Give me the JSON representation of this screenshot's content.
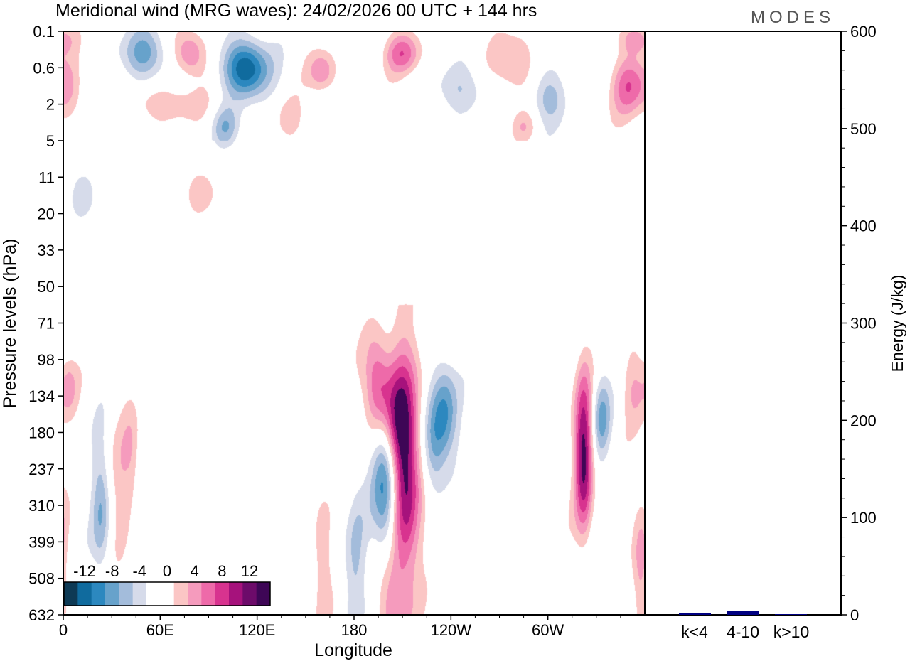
{
  "title": "Meridional wind (MRG waves):  24/02/2026  00 UTC  + 144 hrs",
  "logo": "MODES",
  "chart_data": {
    "type": "heatmap",
    "title": "Meridional wind (MRG waves):  24/02/2026  00 UTC  + 144 hrs",
    "xlabel": "Longitude",
    "ylabel": "Pressure levels (hPa)",
    "x_ticks": [
      "0",
      "60E",
      "120E",
      "180",
      "120W",
      "60W"
    ],
    "x_tick_degrees": [
      0,
      60,
      120,
      180,
      240,
      300
    ],
    "x_range": [
      0,
      360
    ],
    "y_ticks": [
      "0.1",
      "0.6",
      "2",
      "5",
      "11",
      "20",
      "33",
      "50",
      "71",
      "98",
      "134",
      "180",
      "237",
      "310",
      "399",
      "508",
      "632"
    ],
    "colorbar": {
      "labels": [
        "-12",
        "-8",
        "-4",
        "0",
        "4",
        "8",
        "12"
      ],
      "colors": [
        "#0e3a55",
        "#106b9e",
        "#2c88bf",
        "#67a2cb",
        "#a3bcdb",
        "#d6dbea",
        "#ffffff",
        "#ffffff",
        "#fbc6c5",
        "#f59bbd",
        "#ee6aa9",
        "#d8338f",
        "#a6127c",
        "#6d0b6a",
        "#3e0656"
      ]
    },
    "blobs": [
      {
        "lon": 200,
        "lev": 11.8,
        "w": 6,
        "h": 1.8,
        "v": -14
      },
      {
        "lon": 211,
        "lev": 12.0,
        "w": 7,
        "h": 2.2,
        "v": 14
      },
      {
        "lon": 195,
        "lev": 9.8,
        "w": 6,
        "h": 1.0,
        "v": 11
      },
      {
        "lon": 203,
        "lev": 10.6,
        "w": 6,
        "h": 1.2,
        "v": 9
      },
      {
        "lon": 236,
        "lev": 10.5,
        "w": 6,
        "h": 1.0,
        "v": -8
      },
      {
        "lon": 229,
        "lev": 11.6,
        "w": 5,
        "h": 1.0,
        "v": -5
      },
      {
        "lon": 322,
        "lev": 11.6,
        "w": 4,
        "h": 1.5,
        "v": 13
      },
      {
        "lon": 333,
        "lev": 10.6,
        "w": 4,
        "h": 0.8,
        "v": -6
      },
      {
        "lon": 23,
        "lev": 13.1,
        "w": 4,
        "h": 1.3,
        "v": -6
      },
      {
        "lon": 35,
        "lev": 13.0,
        "w": 4,
        "h": 1.4,
        "v": 3
      },
      {
        "lon": 42,
        "lev": 11.8,
        "w": 4,
        "h": 1.2,
        "v": 4
      },
      {
        "lon": 160,
        "lev": 14.6,
        "w": 4,
        "h": 1.4,
        "v": 4
      },
      {
        "lon": 181,
        "lev": 14.7,
        "w": 5,
        "h": 1.5,
        "v": -4
      },
      {
        "lon": 203,
        "lev": 15.6,
        "w": 6,
        "h": 1.0,
        "v": 6
      },
      {
        "lon": 357,
        "lev": 14.6,
        "w": 4,
        "h": 1.5,
        "v": 5
      },
      {
        "lon": 3,
        "lev": 9.7,
        "w": 4,
        "h": 0.6,
        "v": 4
      },
      {
        "lon": 353,
        "lev": 9.8,
        "w": 5,
        "h": 0.7,
        "v": 4
      },
      {
        "lon": 113,
        "lev": 1.0,
        "w": 10,
        "h": 0.55,
        "v": -12
      },
      {
        "lon": 50,
        "lev": 0.6,
        "w": 10,
        "h": 0.5,
        "v": -7
      },
      {
        "lon": 78,
        "lev": 0.6,
        "w": 7,
        "h": 0.45,
        "v": 7
      },
      {
        "lon": 160,
        "lev": 1.1,
        "w": 6,
        "h": 0.4,
        "v": 6
      },
      {
        "lon": 210,
        "lev": 0.6,
        "w": 8,
        "h": 0.4,
        "v": 7
      },
      {
        "lon": 246,
        "lev": 1.6,
        "w": 12,
        "h": 0.5,
        "v": -4
      },
      {
        "lon": 278,
        "lev": 0.9,
        "w": 9,
        "h": 0.6,
        "v": 5
      },
      {
        "lon": 300,
        "lev": 1.8,
        "w": 8,
        "h": 0.55,
        "v": -5
      },
      {
        "lon": 350,
        "lev": 1.5,
        "w": 8,
        "h": 0.6,
        "v": 7
      },
      {
        "lon": 355,
        "lev": 0.2,
        "w": 8,
        "h": 0.3,
        "v": 5
      },
      {
        "lon": 65,
        "lev": 2.0,
        "w": 16,
        "h": 0.35,
        "v": 4
      },
      {
        "lon": 100,
        "lev": 2.6,
        "w": 6,
        "h": 0.4,
        "v": -5
      },
      {
        "lon": 140,
        "lev": 2.4,
        "w": 6,
        "h": 0.4,
        "v": 3
      },
      {
        "lon": 5,
        "lev": 1.6,
        "w": 6,
        "h": 0.6,
        "v": 3
      },
      {
        "lon": 85,
        "lev": 4.4,
        "w": 8,
        "h": 0.5,
        "v": 3
      },
      {
        "lon": 12,
        "lev": 4.5,
        "w": 6,
        "h": 0.5,
        "v": -3
      },
      {
        "lon": 285,
        "lev": 2.6,
        "w": 6,
        "h": 0.3,
        "v": 3
      },
      {
        "lon": 150,
        "lev": 6.0,
        "w": 5,
        "h": 0.2,
        "v": 2
      }
    ]
  }
}
